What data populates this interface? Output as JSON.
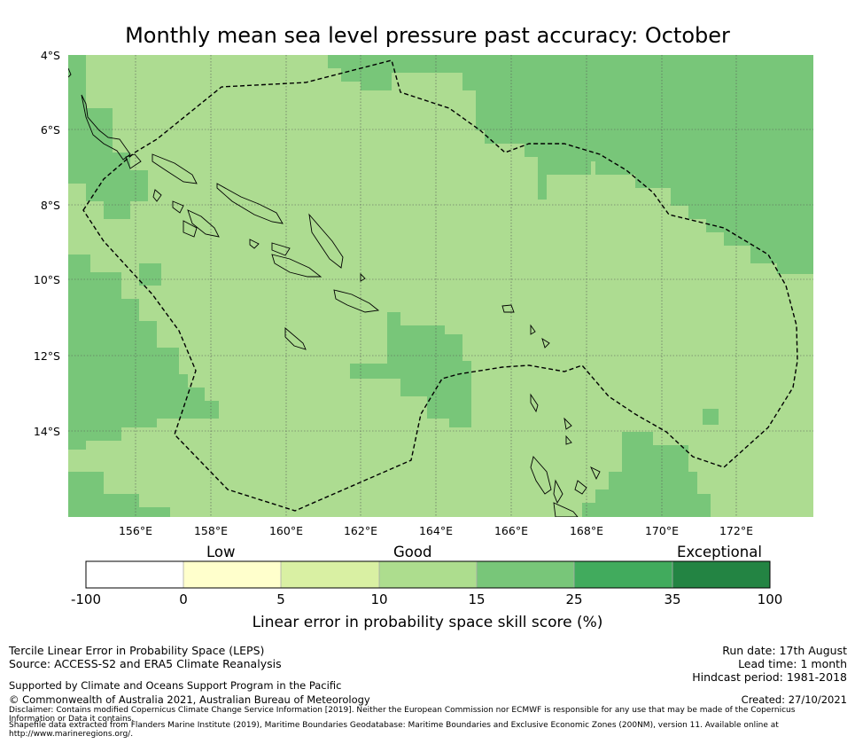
{
  "title": "Monthly mean sea level pressure past accuracy: October",
  "map": {
    "lat_labels": [
      "4°S",
      "6°S",
      "8°S",
      "10°S",
      "12°S",
      "14°S"
    ],
    "lon_labels": [
      "156°E",
      "158°E",
      "160°E",
      "162°E",
      "164°E",
      "166°E",
      "168°E",
      "170°E",
      "172°E"
    ],
    "extent": {
      "lon": [
        154.2,
        174.0
      ],
      "lat": [
        -16.3,
        -4.0
      ]
    },
    "colors": {
      "good": "#addc91",
      "very_good": "#78c679",
      "grid": "#555555"
    }
  },
  "colorbar": {
    "categories": [
      "Low",
      "Good",
      "Exceptional"
    ],
    "ticks": [
      "-100",
      "0",
      "5",
      "10",
      "15",
      "25",
      "35",
      "100"
    ],
    "colors": [
      "#ffffff",
      "#ffffcc",
      "#d9f0a3",
      "#addd8e",
      "#78c679",
      "#41ab5d",
      "#238443"
    ],
    "xlabel": "Linear error in probability space skill score (%)"
  },
  "footer": {
    "left_line1": "Tercile Linear Error in Probability Space (LEPS)",
    "left_line2": "Source: ACCESS-S2 and ERA5 Climate Reanalysis",
    "left_line3": "Supported by Climate and Oceans Support Program in the Pacific",
    "left_line4": "© Commonwealth of Australia 2021, Australian Bureau of Meteorology",
    "disclaimer1": "Disclaimer: Contains modified Copernicus Climate Change Service Information [2019]. Neither the European Commission nor ECMWF is responsible for any use that may be made of the Copernicus",
    "disclaimer2": "Information or Data it contains.",
    "disclaimer3": "Shapefile data extracted from Flanders Marine Institute (2019), Maritime Boundaries Geodatabase: Maritime Boundaries and Exclusive Economic Zones (200NM), version 11. Available online at",
    "disclaimer4": "http://www.marineregions.org/.",
    "run_date": "Run date: 17th August",
    "lead_time": "Lead time: 1 month",
    "hindcast": "Hindcast period: 1981-2018",
    "created": "Created: 27/10/2021"
  }
}
